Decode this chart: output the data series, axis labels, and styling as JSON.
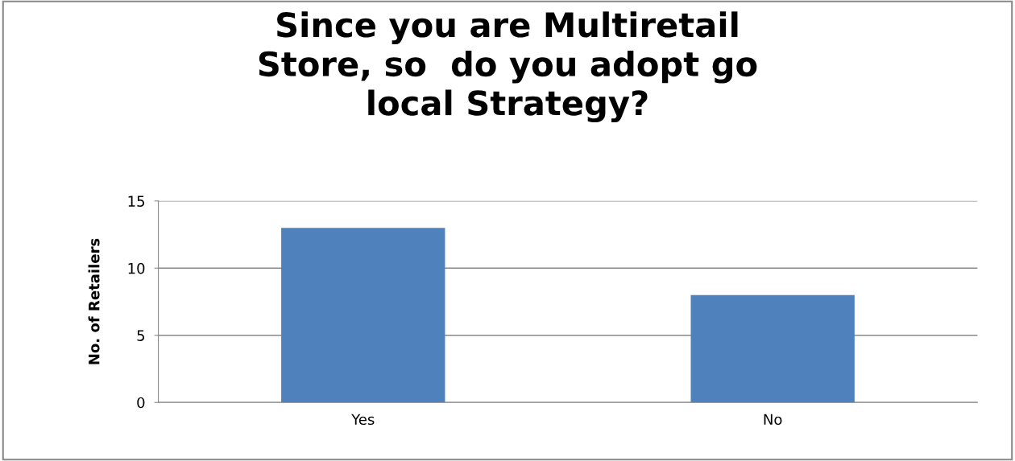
{
  "chart_data": {
    "type": "bar",
    "title": "Since you are Multiretail\nStore, so  do you adopt go\nlocal Strategy?",
    "ylabel": "No. of Retailers",
    "categories": [
      "Yes",
      "No"
    ],
    "values": [
      13,
      8
    ],
    "color": "#4f81bd",
    "ylim": [
      0,
      15
    ],
    "yticks": [
      0,
      5,
      10,
      15
    ],
    "grid": "y"
  }
}
